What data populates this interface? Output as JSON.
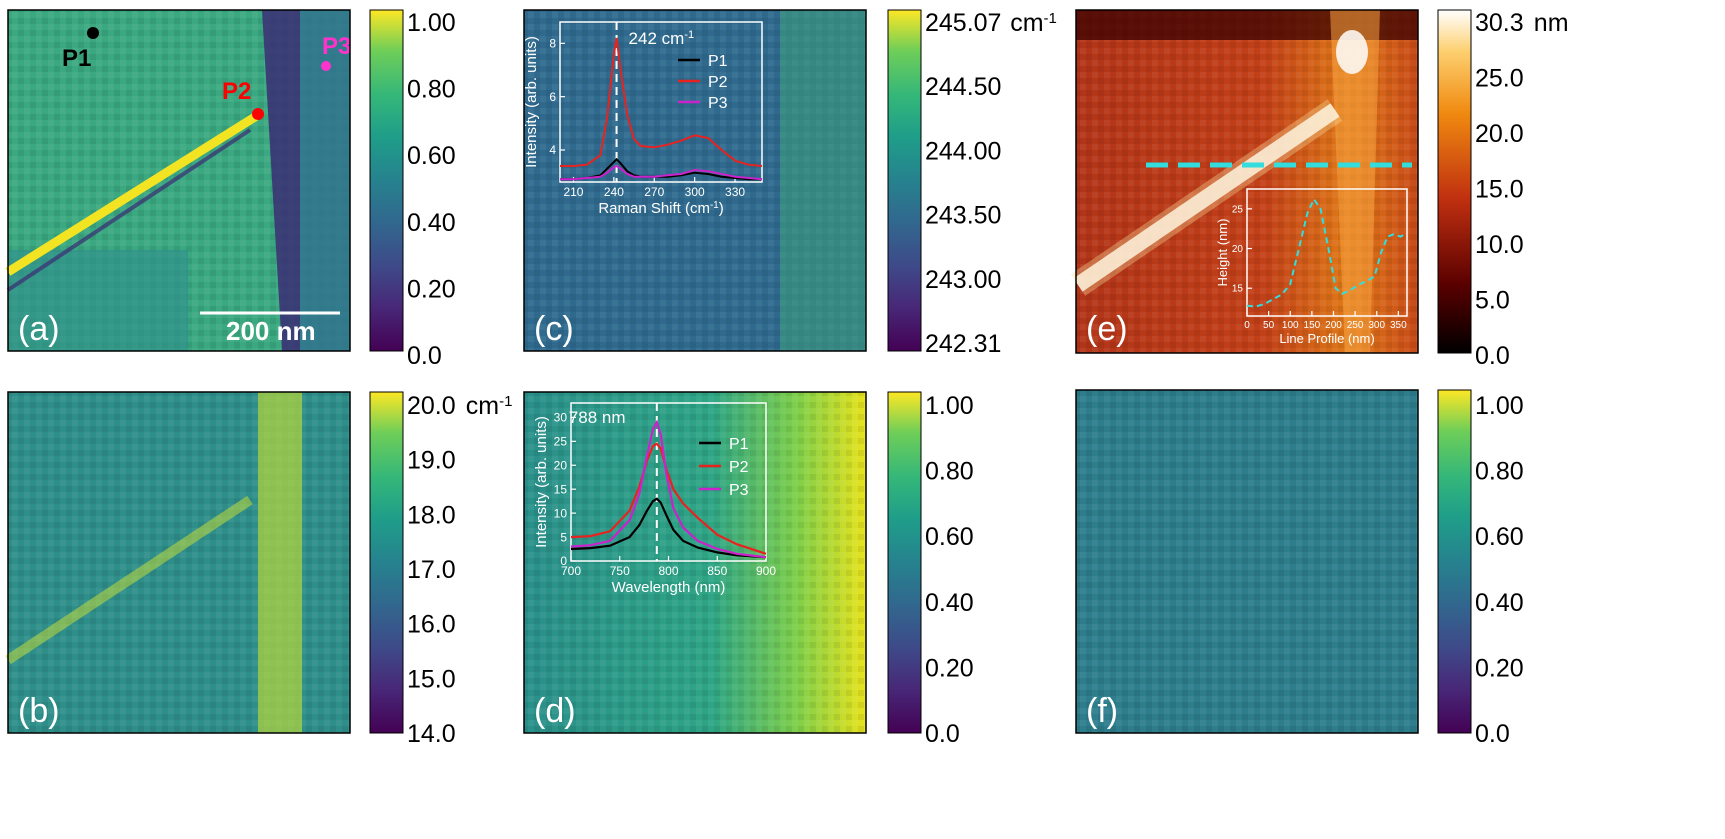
{
  "panels": {
    "a": {
      "label": "(a)",
      "scalebar": "200 nm",
      "points": [
        {
          "name": "P1",
          "color": "#000000"
        },
        {
          "name": "P2",
          "color": "#ff0000"
        },
        {
          "name": "P3",
          "color": "#ff33cc"
        }
      ],
      "colorbar": {
        "ticks": [
          "1.00",
          "0.80",
          "0.60",
          "0.40",
          "0.20",
          "0.0"
        ],
        "unit": ""
      }
    },
    "b": {
      "label": "(b)",
      "colorbar": {
        "ticks": [
          "20.0",
          "19.0",
          "18.0",
          "17.0",
          "16.0",
          "15.0",
          "14.0"
        ],
        "unit": "cm-1"
      }
    },
    "c": {
      "label": "(c)",
      "colorbar": {
        "ticks": [
          "245.07",
          "244.50",
          "244.00",
          "243.50",
          "243.00",
          "242.31"
        ],
        "unit": "cm-1"
      }
    },
    "d": {
      "label": "(d)",
      "colorbar": {
        "ticks": [
          "1.00",
          "0.80",
          "0.60",
          "0.40",
          "0.20",
          "0.0"
        ],
        "unit": ""
      }
    },
    "e": {
      "label": "(e)",
      "colorbar": {
        "ticks": [
          "30.3",
          "25.0",
          "20.0",
          "15.0",
          "10.0",
          "5.0",
          "0.0"
        ],
        "unit": "nm"
      }
    },
    "f": {
      "label": "(f)",
      "colorbar": {
        "ticks": [
          "1.00",
          "0.80",
          "0.60",
          "0.40",
          "0.20",
          "0.0"
        ],
        "unit": ""
      }
    }
  },
  "chart_data": [
    {
      "type": "line",
      "panel": "c-inset",
      "annotation": "242 cm-1",
      "xlabel": "Raman Shift (cm-1)",
      "ylabel": "Intensity (arb. units)",
      "xticks": [
        210,
        240,
        270,
        300,
        330
      ],
      "yticks": [
        4,
        6,
        8
      ],
      "xlim": [
        200,
        350
      ],
      "ylim": [
        2.8,
        8.8
      ],
      "x": [
        200,
        210,
        220,
        230,
        235,
        240,
        242,
        245,
        250,
        255,
        260,
        270,
        280,
        290,
        300,
        310,
        320,
        330,
        340,
        350
      ],
      "series": [
        {
          "name": "P1",
          "color": "#000000",
          "values": [
            2.9,
            2.9,
            2.95,
            3.05,
            3.3,
            3.55,
            3.65,
            3.5,
            3.2,
            3.05,
            3.0,
            3.0,
            3.0,
            3.05,
            3.15,
            3.1,
            3.0,
            2.95,
            2.9,
            2.9
          ]
        },
        {
          "name": "P2",
          "color": "#e8231f",
          "values": [
            3.4,
            3.4,
            3.45,
            3.8,
            5.2,
            7.6,
            8.2,
            7.0,
            5.3,
            4.4,
            4.15,
            4.1,
            4.2,
            4.35,
            4.55,
            4.45,
            4.0,
            3.6,
            3.45,
            3.4
          ]
        },
        {
          "name": "P3",
          "color": "#cc22cc",
          "values": [
            2.9,
            2.9,
            2.95,
            3.0,
            3.15,
            3.35,
            3.4,
            3.3,
            3.1,
            3.0,
            3.0,
            3.0,
            3.05,
            3.1,
            3.25,
            3.2,
            3.1,
            3.0,
            2.95,
            2.9
          ]
        }
      ],
      "marker_x": 242
    },
    {
      "type": "line",
      "panel": "d-inset",
      "annotation": "788 nm",
      "xlabel": "Wavelength (nm)",
      "ylabel": "Intensity (arb. units)",
      "xticks": [
        700,
        750,
        800,
        850,
        900
      ],
      "yticks": [
        0,
        5,
        10,
        15,
        20,
        25,
        30
      ],
      "xlim": [
        700,
        900
      ],
      "ylim": [
        0,
        33
      ],
      "x": [
        700,
        720,
        740,
        760,
        770,
        778,
        784,
        788,
        792,
        798,
        805,
        815,
        830,
        850,
        870,
        900
      ],
      "series": [
        {
          "name": "P1",
          "color": "#000000",
          "values": [
            2.5,
            2.7,
            3.2,
            5.0,
            7.5,
            10.5,
            12.5,
            13.0,
            12.2,
            9.5,
            6.5,
            4.2,
            2.8,
            1.8,
            1.2,
            0.8
          ]
        },
        {
          "name": "P2",
          "color": "#e8231f",
          "values": [
            5.0,
            5.2,
            6.2,
            10.5,
            15.5,
            21.0,
            24.0,
            24.5,
            23.5,
            19.0,
            15.0,
            12.0,
            9.0,
            5.5,
            3.5,
            1.5
          ]
        },
        {
          "name": "P3",
          "color": "#cc22cc",
          "values": [
            3.0,
            3.3,
            4.2,
            8.5,
            14.0,
            22.0,
            27.5,
            29.0,
            26.5,
            18.0,
            11.0,
            7.0,
            4.2,
            2.5,
            1.5,
            0.8
          ]
        }
      ],
      "marker_x": 788
    },
    {
      "type": "line",
      "panel": "e-inset",
      "xlabel": "Line Profile (nm)",
      "ylabel": "Height (nm)",
      "xticks": [
        0,
        50,
        100,
        150,
        200,
        250,
        300,
        350
      ],
      "yticks": [
        15,
        20,
        25
      ],
      "xlim": [
        0,
        370
      ],
      "ylim": [
        11.5,
        27.5
      ],
      "x": [
        0,
        20,
        40,
        60,
        80,
        100,
        120,
        140,
        155,
        170,
        190,
        205,
        220,
        240,
        260,
        280,
        295,
        310,
        325,
        340,
        355,
        365
      ],
      "series": [
        {
          "name": "",
          "color": "#33dddd",
          "values": [
            12.8,
            12.7,
            13.0,
            13.6,
            14.2,
            15.5,
            20.0,
            24.5,
            26.2,
            25.0,
            19.5,
            15.0,
            14.3,
            14.8,
            15.5,
            16.0,
            16.5,
            19.5,
            21.5,
            21.8,
            21.5,
            21.8
          ]
        }
      ]
    }
  ]
}
